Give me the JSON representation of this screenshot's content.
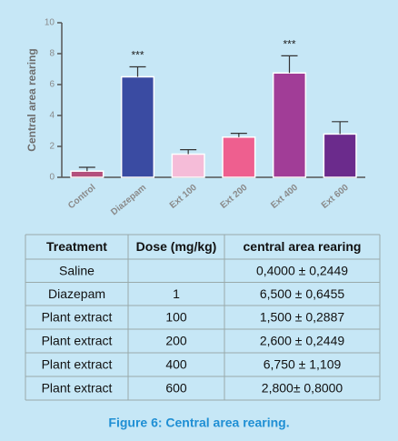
{
  "chart_data": {
    "type": "bar",
    "ylabel": "Central area rearing",
    "categories": [
      "Control",
      "Diazepam",
      "Ext 100",
      "Ext 200",
      "Ext 400",
      "Ext 600"
    ],
    "values": [
      0.4,
      6.5,
      1.5,
      2.6,
      6.75,
      2.8
    ],
    "errors": [
      0.2449,
      0.6455,
      0.2887,
      0.2449,
      1.109,
      0.8
    ],
    "colors": [
      "#b4507c",
      "#3a4ba2",
      "#f5bcd8",
      "#ee5f8f",
      "#a13d97",
      "#6b2b8c"
    ],
    "annotations": [
      {
        "text": "***",
        "x": "Diazepam"
      },
      {
        "text": "***",
        "x": "Ext 400"
      }
    ],
    "ylim": [
      0,
      10
    ],
    "yticks": [
      0,
      2,
      4,
      6,
      8,
      10
    ]
  },
  "table": {
    "headers": [
      "Treatment",
      "Dose (mg/kg)",
      "central area rearing"
    ],
    "rows": [
      [
        "Saline",
        "",
        "0,4000 ± 0,2449"
      ],
      [
        "Diazepam",
        "1",
        "6,500 ± 0,6455"
      ],
      [
        "Plant extract",
        "100",
        "1,500 ± 0,2887"
      ],
      [
        "Plant extract",
        "200",
        "2,600 ± 0,2449"
      ],
      [
        "Plant extract",
        "400",
        "6,750 ± 1,109"
      ],
      [
        "Plant extract",
        "600",
        "2,800± 0,8000"
      ]
    ]
  },
  "caption": "Figure 6: Central area rearing."
}
